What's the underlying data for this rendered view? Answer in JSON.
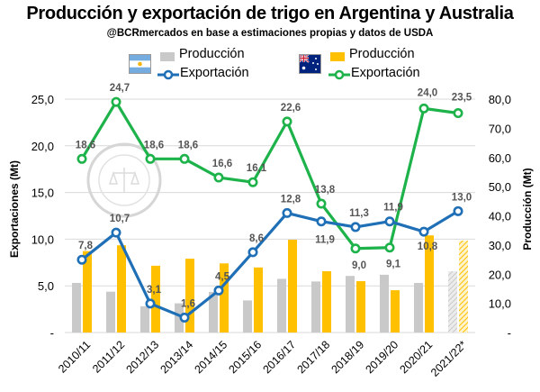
{
  "title": "Producción y exportación de trigo en Argentina y Australia",
  "subtitle": "@BCRmercados en base a estimaciones propias y datos de USDA",
  "legend": {
    "arg_production": "Producción",
    "arg_export": "Exportación",
    "aus_production": "Producción",
    "aus_export": "Exportación"
  },
  "colors": {
    "arg_production": "#c9c9c9",
    "arg_export": "#1f6fb6",
    "aus_production": "#ffc000",
    "aus_export": "#1db34a"
  },
  "chart_data": {
    "type": "bar",
    "title": "Producción y exportación de trigo en Argentina y Australia",
    "subtitle": "@BCRmercados en base a estimaciones propias y datos de USDA",
    "categories": [
      "2010/11",
      "2011/12",
      "2012/13",
      "2013/14",
      "2014/15",
      "2015/16",
      "2016/17",
      "2017/18",
      "2018/19",
      "2019/20",
      "2020/21",
      "2021/22*"
    ],
    "ylabel_left": "Exportaciones (Mt)",
    "ylabel_right": "Producción (Mt)",
    "y_left_range": [
      0,
      25
    ],
    "y_left_ticks": [
      "-",
      "5,0",
      "10,0",
      "15,0",
      "20,0",
      "25,0"
    ],
    "y_right_range": [
      0,
      80
    ],
    "y_right_ticks": [
      "-",
      "10,0",
      "20,0",
      "30,0",
      "40,0",
      "50,0",
      "60,0",
      "70,0",
      "80,0"
    ],
    "series": [
      {
        "name": "Producción",
        "country": "Argentina",
        "kind": "bar",
        "axis": "right",
        "values": [
          17,
          14,
          9,
          10,
          13.9,
          11,
          18.4,
          17.5,
          19.4,
          19.8,
          17,
          21
        ],
        "labels_shown": false
      },
      {
        "name": "Producción",
        "country": "Australia",
        "kind": "bar",
        "axis": "right",
        "values": [
          27.9,
          29.9,
          22.9,
          25.3,
          23.7,
          22.3,
          31.8,
          21,
          17.6,
          14.5,
          33.3,
          31.5
        ],
        "labels_shown": false
      },
      {
        "name": "Exportación",
        "country": "Argentina",
        "kind": "line",
        "axis": "left",
        "values": [
          7.8,
          10.7,
          3.1,
          1.6,
          4.5,
          8.6,
          12.8,
          11.9,
          11.3,
          11.9,
          10.8,
          13.0
        ],
        "labels": [
          "7,8",
          "10,7",
          "3,1",
          "1,6",
          "4,5",
          "8,6",
          "12,8",
          "11,9",
          "11,3",
          "11,9",
          "10,8",
          "13,0"
        ]
      },
      {
        "name": "Exportación",
        "country": "Australia",
        "kind": "line",
        "axis": "left",
        "values": [
          18.6,
          24.7,
          18.6,
          18.6,
          16.6,
          16.1,
          22.6,
          13.8,
          9.0,
          9.1,
          24.0,
          23.5
        ],
        "labels": [
          "18,6",
          "24,7",
          "18,6",
          "18,6",
          "16,6",
          "16,1",
          "22,6",
          "13,8",
          "9,0",
          "9,1",
          "24,0",
          "23,5"
        ]
      }
    ],
    "estimate_hatched_last_category": true,
    "grid": true,
    "legend_position": "top"
  }
}
